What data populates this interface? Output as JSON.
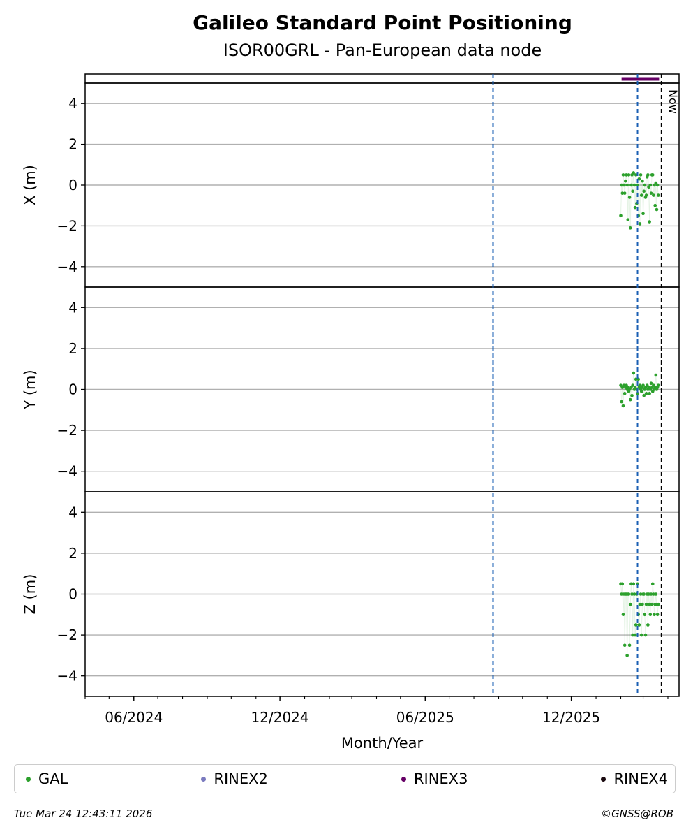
{
  "header": {
    "title": "Galileo Standard Point Positioning",
    "subtitle": "ISOR00GRL - Pan-European data node"
  },
  "footer": {
    "timestamp": "Tue Mar 24 12:43:11 2026",
    "copyright": "©GNSS@ROB"
  },
  "colors": {
    "GAL": "#2ca02c",
    "RINEX2": "#7b7bbf",
    "RINEX3": "#660066",
    "RINEX4": "#1a0a10",
    "event_line": "#1a5fb4",
    "now_line": "#000000",
    "grid": "#b0b0b0"
  },
  "chart_data": {
    "type": "scatter",
    "xlabel": "Month/Year",
    "x_range": [
      "2024-04-01",
      "2026-04-15"
    ],
    "x_tick_labels": [
      {
        "date": "2024-06-01",
        "label": "06/2024"
      },
      {
        "date": "2024-12-01",
        "label": "12/2024"
      },
      {
        "date": "2025-06-01",
        "label": "06/2025"
      },
      {
        "date": "2025-12-01",
        "label": "12/2025"
      }
    ],
    "now_label": "Now",
    "now_date": "2026-03-24",
    "event_dates": [
      "2025-08-25",
      "2026-02-22"
    ],
    "grid": true,
    "legend_placement": "bottom",
    "legend": [
      "GAL",
      "RINEX2",
      "RINEX3",
      "RINEX4"
    ],
    "rinex3_span": [
      "2026-02-02",
      "2026-03-21"
    ],
    "panels": [
      {
        "ylabel": "X (m)",
        "ylim": [
          -5,
          5
        ],
        "yticks": [
          4,
          2,
          0,
          -2,
          -4
        ],
        "series": [
          {
            "name": "GAL",
            "points": [
              [
                "2026-02-01",
                -1.5
              ],
              [
                "2026-02-02",
                0.0
              ],
              [
                "2026-02-03",
                -0.4
              ],
              [
                "2026-02-04",
                0.5
              ],
              [
                "2026-02-05",
                0.0
              ],
              [
                "2026-02-06",
                -0.4
              ],
              [
                "2026-02-07",
                0.2
              ],
              [
                "2026-02-08",
                0.5
              ],
              [
                "2026-02-09",
                0.0
              ],
              [
                "2026-02-10",
                -1.7
              ],
              [
                "2026-02-11",
                0.5
              ],
              [
                "2026-02-12",
                -0.6
              ],
              [
                "2026-02-13",
                -2.1
              ],
              [
                "2026-02-14",
                0.0
              ],
              [
                "2026-02-15",
                0.5
              ],
              [
                "2026-02-16",
                -0.3
              ],
              [
                "2026-02-17",
                0.6
              ],
              [
                "2026-02-18",
                0.0
              ],
              [
                "2026-02-19",
                -1.1
              ],
              [
                "2026-02-20",
                0.5
              ],
              [
                "2026-02-21",
                -0.9
              ],
              [
                "2026-02-22",
                0.0
              ],
              [
                "2026-02-23",
                -1.5
              ],
              [
                "2026-02-24",
                0.3
              ],
              [
                "2026-02-25",
                -1.9
              ],
              [
                "2026-02-26",
                0.5
              ],
              [
                "2026-02-27",
                -0.5
              ],
              [
                "2026-02-28",
                0.2
              ],
              [
                "2026-03-01",
                -1.4
              ],
              [
                "2026-03-02",
                -0.3
              ],
              [
                "2026-03-03",
                0.0
              ],
              [
                "2026-03-04",
                -0.6
              ],
              [
                "2026-03-05",
                -0.5
              ],
              [
                "2026-03-06",
                0.4
              ],
              [
                "2026-03-07",
                0.5
              ],
              [
                "2026-03-08",
                -0.1
              ],
              [
                "2026-03-09",
                -1.8
              ],
              [
                "2026-03-10",
                0.0
              ],
              [
                "2026-03-11",
                -0.4
              ],
              [
                "2026-03-12",
                0.5
              ],
              [
                "2026-03-13",
                0.5
              ],
              [
                "2026-03-14",
                -0.5
              ],
              [
                "2026-03-15",
                0.0
              ],
              [
                "2026-03-16",
                -1.0
              ],
              [
                "2026-03-17",
                0.1
              ],
              [
                "2026-03-18",
                -1.2
              ],
              [
                "2026-03-19",
                0.0
              ],
              [
                "2026-03-20",
                -0.5
              ]
            ]
          }
        ]
      },
      {
        "ylabel": "Y (m)",
        "ylim": [
          -5,
          5
        ],
        "yticks": [
          4,
          2,
          0,
          -2,
          -4
        ],
        "series": [
          {
            "name": "GAL",
            "points": [
              [
                "2026-02-01",
                0.2
              ],
              [
                "2026-02-02",
                -0.6
              ],
              [
                "2026-02-03",
                0.1
              ],
              [
                "2026-02-04",
                -0.8
              ],
              [
                "2026-02-05",
                0.2
              ],
              [
                "2026-02-06",
                -0.2
              ],
              [
                "2026-02-07",
                0.1
              ],
              [
                "2026-02-08",
                0.2
              ],
              [
                "2026-02-09",
                0.0
              ],
              [
                "2026-02-10",
                0.1
              ],
              [
                "2026-02-11",
                -0.1
              ],
              [
                "2026-02-12",
                0.0
              ],
              [
                "2026-02-13",
                -0.5
              ],
              [
                "2026-02-14",
                0.1
              ],
              [
                "2026-02-15",
                -0.3
              ],
              [
                "2026-02-16",
                0.2
              ],
              [
                "2026-02-17",
                0.8
              ],
              [
                "2026-02-18",
                0.0
              ],
              [
                "2026-02-19",
                0.1
              ],
              [
                "2026-02-20",
                0.5
              ],
              [
                "2026-02-21",
                0.0
              ],
              [
                "2026-02-22",
                -0.2
              ],
              [
                "2026-02-23",
                0.5
              ],
              [
                "2026-02-24",
                0.1
              ],
              [
                "2026-02-25",
                0.2
              ],
              [
                "2026-02-26",
                0.0
              ],
              [
                "2026-02-27",
                -0.1
              ],
              [
                "2026-02-28",
                0.1
              ],
              [
                "2026-03-01",
                0.2
              ],
              [
                "2026-03-02",
                -0.3
              ],
              [
                "2026-03-03",
                0.0
              ],
              [
                "2026-03-04",
                0.1
              ],
              [
                "2026-03-05",
                -0.2
              ],
              [
                "2026-03-06",
                0.2
              ],
              [
                "2026-03-07",
                0.0
              ],
              [
                "2026-03-08",
                0.1
              ],
              [
                "2026-03-09",
                -0.2
              ],
              [
                "2026-03-10",
                0.0
              ],
              [
                "2026-03-11",
                0.3
              ],
              [
                "2026-03-12",
                0.1
              ],
              [
                "2026-03-13",
                -0.1
              ],
              [
                "2026-03-14",
                0.2
              ],
              [
                "2026-03-15",
                0.0
              ],
              [
                "2026-03-16",
                0.1
              ],
              [
                "2026-03-17",
                0.7
              ],
              [
                "2026-03-18",
                0.0
              ],
              [
                "2026-03-19",
                0.1
              ],
              [
                "2026-03-20",
                0.2
              ]
            ]
          }
        ]
      },
      {
        "ylabel": "Z (m)",
        "ylim": [
          -5,
          5
        ],
        "yticks": [
          4,
          2,
          0,
          -2,
          -4
        ],
        "series": [
          {
            "name": "GAL",
            "points": [
              [
                "2026-02-01",
                0.5
              ],
              [
                "2026-02-02",
                0.0
              ],
              [
                "2026-02-03",
                0.5
              ],
              [
                "2026-02-04",
                -1.0
              ],
              [
                "2026-02-05",
                0.0
              ],
              [
                "2026-02-06",
                -2.5
              ],
              [
                "2026-02-07",
                0.0
              ],
              [
                "2026-02-08",
                0.0
              ],
              [
                "2026-02-09",
                -3.0
              ],
              [
                "2026-02-10",
                0.0
              ],
              [
                "2026-02-11",
                0.0
              ],
              [
                "2026-02-12",
                -2.5
              ],
              [
                "2026-02-13",
                -0.5
              ],
              [
                "2026-02-14",
                0.5
              ],
              [
                "2026-02-15",
                0.0
              ],
              [
                "2026-02-16",
                -2.0
              ],
              [
                "2026-02-17",
                0.5
              ],
              [
                "2026-02-18",
                0.0
              ],
              [
                "2026-02-19",
                -2.0
              ],
              [
                "2026-02-20",
                -1.5
              ],
              [
                "2026-02-21",
                0.0
              ],
              [
                "2026-02-22",
                0.5
              ],
              [
                "2026-02-23",
                -1.0
              ],
              [
                "2026-02-24",
                -1.5
              ],
              [
                "2026-02-25",
                -0.5
              ],
              [
                "2026-02-26",
                0.0
              ],
              [
                "2026-02-27",
                -2.0
              ],
              [
                "2026-02-28",
                -0.5
              ],
              [
                "2026-03-01",
                0.0
              ],
              [
                "2026-03-02",
                0.0
              ],
              [
                "2026-03-03",
                -1.0
              ],
              [
                "2026-03-04",
                -2.0
              ],
              [
                "2026-03-05",
                -0.5
              ],
              [
                "2026-03-06",
                0.0
              ],
              [
                "2026-03-07",
                -1.5
              ],
              [
                "2026-03-08",
                0.0
              ],
              [
                "2026-03-09",
                -0.5
              ],
              [
                "2026-03-10",
                -1.0
              ],
              [
                "2026-03-11",
                0.0
              ],
              [
                "2026-03-12",
                -0.5
              ],
              [
                "2026-03-13",
                0.5
              ],
              [
                "2026-03-14",
                0.0
              ],
              [
                "2026-03-15",
                -1.0
              ],
              [
                "2026-03-16",
                -0.5
              ],
              [
                "2026-03-17",
                0.0
              ],
              [
                "2026-03-18",
                -0.5
              ],
              [
                "2026-03-19",
                -1.0
              ],
              [
                "2026-03-20",
                -0.5
              ]
            ]
          }
        ]
      }
    ]
  }
}
